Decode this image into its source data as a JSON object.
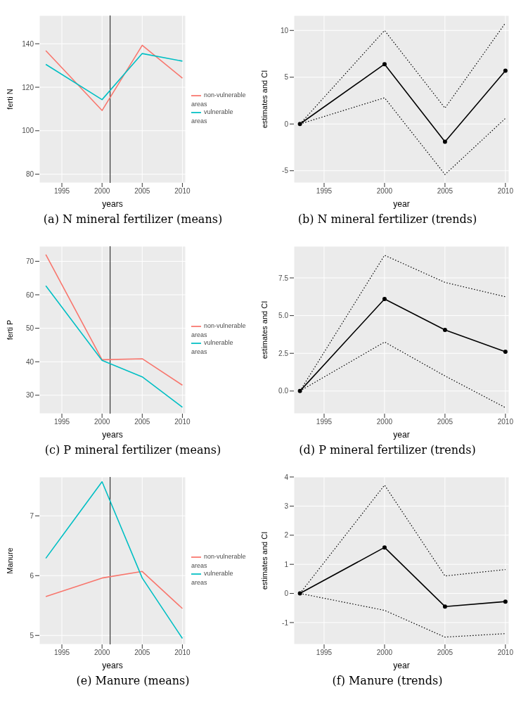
{
  "chart_data": [
    {
      "type": "line",
      "title": "(a) N mineral fertilizer (means)",
      "xlabel": "years",
      "ylabel": "ferti N",
      "x": [
        1993,
        2000,
        2005,
        2010
      ],
      "xlim": [
        1992.2,
        2010.4
      ],
      "xticks": [
        1995,
        2000,
        2005,
        2010
      ],
      "ylim": [
        76,
        153
      ],
      "yticks": [
        80,
        100,
        120,
        140
      ],
      "grid": true,
      "legend": "right",
      "marker": "none",
      "line_style": "solid",
      "series": [
        {
          "name": "non-vulnerable areas",
          "color": "#f8766d",
          "values": [
            136.8,
            109.3,
            139.3,
            124.2
          ]
        },
        {
          "name": "vulnerable areas",
          "color": "#00bfc4",
          "values": [
            130.5,
            114.3,
            135.5,
            132
          ]
        }
      ],
      "ref_lines": [
        {
          "axis": "x",
          "value": 2001,
          "color": "#333333"
        }
      ]
    },
    {
      "type": "line",
      "title": "(b) N mineral fertilizer (trends)",
      "xlabel": "year",
      "ylabel": "estimates and CI",
      "x": [
        1993,
        2000,
        2005,
        2010
      ],
      "xlim": [
        1992.5,
        2010.3
      ],
      "xticks": [
        1995,
        2000,
        2005,
        2010
      ],
      "ylim": [
        -6.3,
        11.6
      ],
      "yticks": [
        -5,
        0,
        5,
        10
      ],
      "grid": true,
      "series": [
        {
          "color": "#000000",
          "values": [
            0,
            6.4,
            -1.9,
            5.7
          ],
          "marker": "circle",
          "line_style": "solid"
        },
        {
          "color": "#000000",
          "values": [
            0,
            10,
            1.7,
            10.8
          ],
          "marker": "none",
          "line_style": "dotted"
        },
        {
          "color": "#000000",
          "values": [
            0,
            2.8,
            -5.4,
            0.6
          ],
          "marker": "none",
          "line_style": "dotted"
        }
      ]
    },
    {
      "type": "line",
      "title": "(c) P mineral fertilizer (means)",
      "xlabel": "years",
      "ylabel": "ferti P",
      "x": [
        1993,
        2000,
        2005,
        2010
      ],
      "xlim": [
        1992.2,
        2010.4
      ],
      "xticks": [
        1995,
        2000,
        2005,
        2010
      ],
      "ylim": [
        24.5,
        74.5
      ],
      "yticks": [
        30,
        40,
        50,
        60,
        70
      ],
      "grid": true,
      "legend": "right",
      "marker": "none",
      "line_style": "solid",
      "series": [
        {
          "name": "non-vulnerable areas",
          "color": "#f8766d",
          "values": [
            72,
            40.6,
            40.9,
            33
          ]
        },
        {
          "name": "vulnerable areas",
          "color": "#00bfc4",
          "values": [
            62.7,
            40.4,
            35.5,
            26.4
          ]
        }
      ],
      "ref_lines": [
        {
          "axis": "x",
          "value": 2001,
          "color": "#333333"
        }
      ]
    },
    {
      "type": "line",
      "title": "(d) P mineral fertilizer (trends)",
      "xlabel": "year",
      "ylabel": "estimates and CI",
      "x": [
        1993,
        2000,
        2005,
        2010
      ],
      "xlim": [
        1992.5,
        2010.3
      ],
      "xticks": [
        1995,
        2000,
        2005,
        2010
      ],
      "ylim": [
        -1.5,
        9.6
      ],
      "yticks": [
        {
          "value": 0,
          "label": "0.0"
        },
        {
          "value": 2.5,
          "label": "2.5"
        },
        {
          "value": 5,
          "label": "5.0"
        },
        {
          "value": 7.5,
          "label": "7.5"
        }
      ],
      "grid": true,
      "series": [
        {
          "color": "#000000",
          "values": [
            0,
            6.1,
            4.05,
            2.6
          ],
          "marker": "circle",
          "line_style": "solid"
        },
        {
          "color": "#000000",
          "values": [
            0,
            9,
            7.2,
            6.25
          ],
          "marker": "none",
          "line_style": "dotted"
        },
        {
          "color": "#000000",
          "values": [
            0,
            3.25,
            1,
            -1.1
          ],
          "marker": "none",
          "line_style": "dotted"
        }
      ]
    },
    {
      "type": "line",
      "title": "(e) Manure (means)",
      "xlabel": "years",
      "ylabel": "Manure",
      "x": [
        1993,
        2000,
        2005,
        2010
      ],
      "xlim": [
        1992.2,
        2010.4
      ],
      "xticks": [
        1995,
        2000,
        2005,
        2010
      ],
      "ylim": [
        4.85,
        7.65
      ],
      "yticks": [
        5,
        6,
        7
      ],
      "grid": true,
      "legend": "right",
      "marker": "none",
      "line_style": "solid",
      "series": [
        {
          "name": "non-vulnerable areas",
          "color": "#f8766d",
          "values": [
            5.65,
            5.96,
            6.07,
            5.45
          ]
        },
        {
          "name": "vulnerable areas",
          "color": "#00bfc4",
          "values": [
            6.29,
            7.57,
            5.96,
            4.95
          ]
        }
      ],
      "ref_lines": [
        {
          "axis": "x",
          "value": 2001,
          "color": "#333333"
        }
      ]
    },
    {
      "type": "line",
      "title": "(f) Manure (trends)",
      "xlabel": "year",
      "ylabel": "estimates and CI",
      "x": [
        1993,
        2000,
        2005,
        2010
      ],
      "xlim": [
        1992.5,
        2010.3
      ],
      "xticks": [
        1995,
        2000,
        2005,
        2010
      ],
      "ylim": [
        -1.75,
        4
      ],
      "yticks": [
        -1,
        0,
        1,
        2,
        3,
        4
      ],
      "grid": true,
      "series": [
        {
          "color": "#000000",
          "values": [
            0,
            1.58,
            -0.45,
            -0.28
          ],
          "marker": "circle",
          "line_style": "solid"
        },
        {
          "color": "#000000",
          "values": [
            0,
            3.72,
            0.6,
            0.82
          ],
          "marker": "none",
          "line_style": "dotted"
        },
        {
          "color": "#000000",
          "values": [
            0,
            -0.58,
            -1.5,
            -1.38
          ],
          "marker": "none",
          "line_style": "dotted"
        }
      ]
    }
  ]
}
